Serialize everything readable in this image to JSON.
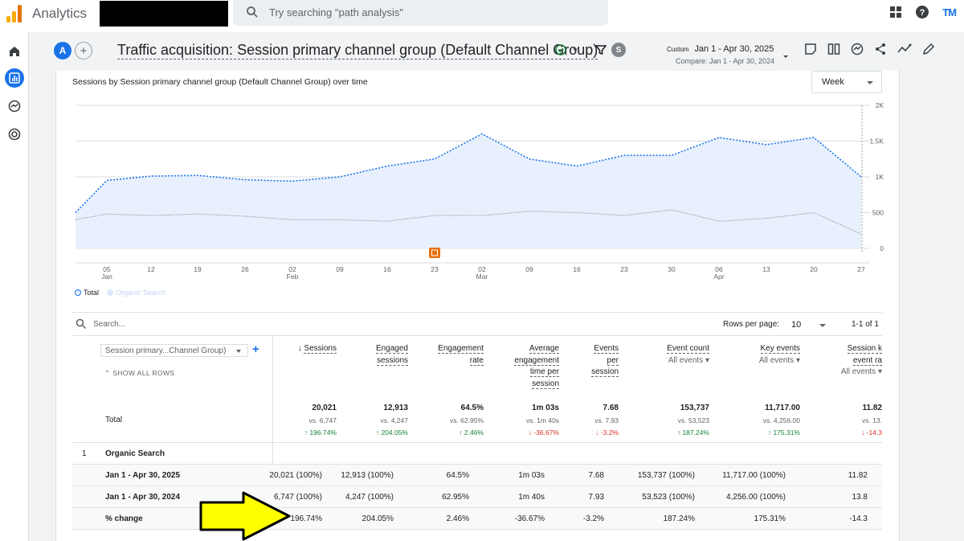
{
  "app": {
    "name": "Analytics",
    "search_placeholder": "Try searching \"path analysis\"",
    "user_initials": "TM"
  },
  "header": {
    "property_avatar": "A",
    "title": "Traffic acquisition: Session primary channel group (Default Channel Group)",
    "segment_badge": "S",
    "date_label": "Custom",
    "date_range": "Jan 1 - Apr 30, 2025",
    "compare_range": "Compare: Jan 1 - Apr 30, 2024"
  },
  "chart": {
    "title": "Sessions by Session primary channel group (Default Channel Group) over time",
    "granularity": "Week"
  },
  "chart_data": {
    "type": "line",
    "title": "Sessions by Session primary channel group (Default Channel Group) over time",
    "x": [
      "05 Jan",
      "12",
      "19",
      "26",
      "02 Feb",
      "09",
      "16",
      "23",
      "02 Mar",
      "09",
      "16",
      "23",
      "30",
      "06 Apr",
      "13",
      "20",
      "27"
    ],
    "x_tick_labels": [
      {
        "day": "05",
        "month": "Jan"
      },
      {
        "day": "12",
        "month": ""
      },
      {
        "day": "19",
        "month": ""
      },
      {
        "day": "26",
        "month": ""
      },
      {
        "day": "02",
        "month": "Feb"
      },
      {
        "day": "09",
        "month": ""
      },
      {
        "day": "16",
        "month": ""
      },
      {
        "day": "23",
        "month": ""
      },
      {
        "day": "02",
        "month": "Mar"
      },
      {
        "day": "09",
        "month": ""
      },
      {
        "day": "16",
        "month": ""
      },
      {
        "day": "23",
        "month": ""
      },
      {
        "day": "30",
        "month": ""
      },
      {
        "day": "06",
        "month": "Apr"
      },
      {
        "day": "13",
        "month": ""
      },
      {
        "day": "20",
        "month": ""
      },
      {
        "day": "27",
        "month": ""
      }
    ],
    "y_ticks": [
      "0",
      "500",
      "1K",
      "1.5K",
      "2K"
    ],
    "ylim": [
      0,
      2000
    ],
    "series": [
      {
        "name": "Total",
        "color": "#1a73e8",
        "start_value": 500,
        "values": [
          950,
          1010,
          1020,
          960,
          940,
          1000,
          1150,
          1250,
          1600,
          1250,
          1150,
          1300,
          1300,
          1550,
          1450,
          1550,
          1000
        ]
      },
      {
        "name": "Organic Search",
        "color": "#a7c7f5",
        "start_value": 400,
        "values": [
          480,
          460,
          480,
          450,
          400,
          400,
          380,
          460,
          460,
          520,
          500,
          460,
          540,
          380,
          420,
          500,
          200
        ]
      }
    ],
    "grid": true,
    "legend": "bottom-left",
    "annotation": {
      "x": "23",
      "label": "note-icon"
    }
  },
  "table": {
    "search_placeholder": "Search...",
    "rows_per_page_label": "Rows per page:",
    "rows_per_page": "10",
    "pagination": "1-1 of 1",
    "dimension": "Session primary...Channel Group)",
    "show_all_rows": "SHOW ALL ROWS",
    "columns": [
      {
        "line1": "Sessions",
        "line2": "",
        "line3": "",
        "line4": "",
        "sub": ""
      },
      {
        "line1": "Engaged",
        "line2": "sessions",
        "line3": "",
        "line4": "",
        "sub": ""
      },
      {
        "line1": "Engagement",
        "line2": "rate",
        "line3": "",
        "line4": "",
        "sub": ""
      },
      {
        "line1": "Average",
        "line2": "engagement",
        "line3": "time per",
        "line4": "session",
        "sub": ""
      },
      {
        "line1": "Events",
        "line2": "per",
        "line3": "session",
        "line4": "",
        "sub": ""
      },
      {
        "line1": "Event count",
        "line2": "",
        "line3": "",
        "line4": "",
        "sub": "All events"
      },
      {
        "line1": "Key events",
        "line2": "",
        "line3": "",
        "line4": "",
        "sub": "All events"
      },
      {
        "line1": "Session k",
        "line2": "event ra",
        "line3": "",
        "line4": "",
        "sub": "All events"
      }
    ],
    "total": {
      "label": "Total",
      "values": [
        "20,021",
        "12,913",
        "64.5%",
        "1m 03s",
        "7.68",
        "153,737",
        "11,717.00",
        "11.82"
      ],
      "vs": [
        "vs. 6,747",
        "vs. 4,247",
        "vs. 62.95%",
        "vs. 1m 40s",
        "vs. 7.93",
        "vs. 53,523",
        "vs. 4,256.00",
        "vs. 13."
      ],
      "change": [
        "196.74%",
        "204.05%",
        "2.46%",
        "-36.67%",
        "-3.2%",
        "187.24%",
        "175.31%",
        "-14.3"
      ],
      "direction": [
        "up",
        "up",
        "up",
        "down",
        "down",
        "up",
        "up",
        "down"
      ]
    },
    "rows": [
      {
        "num": "1",
        "label": "Organic Search",
        "cells": [
          "",
          "",
          "",
          "",
          "",
          "",
          "",
          ""
        ]
      },
      {
        "num": "",
        "label": "Jan 1 - Apr 30, 2025",
        "cells": [
          "20,021 (100%)",
          "12,913 (100%)",
          "64.5%",
          "1m 03s",
          "7.68",
          "153,737 (100%)",
          "11,717.00 (100%)",
          "11.82"
        ]
      },
      {
        "num": "",
        "label": "Jan 1 - Apr 30, 2024",
        "cells": [
          "6,747 (100%)",
          "4,247 (100%)",
          "62.95%",
          "1m 40s",
          "7.93",
          "53,523 (100%)",
          "4,256.00 (100%)",
          "13.8"
        ]
      },
      {
        "num": "",
        "label": "% change",
        "cells": [
          "196.74%",
          "204.05%",
          "2.46%",
          "-36.67%",
          "-3.2%",
          "187.24%",
          "175.31%",
          "-14.3"
        ]
      }
    ]
  }
}
